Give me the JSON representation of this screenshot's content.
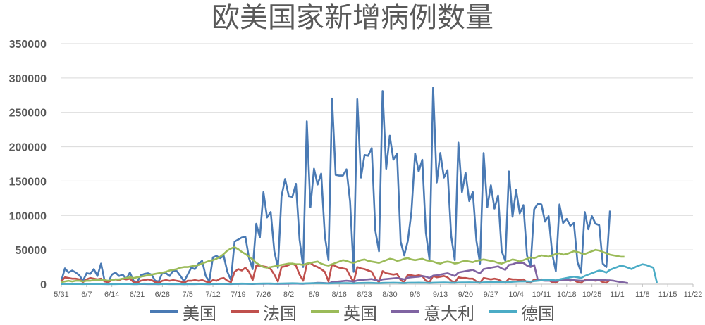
{
  "chart_data": {
    "type": "line",
    "title": "欧美国家新增病例数量",
    "ylim": [
      0,
      350000
    ],
    "y_ticks": [
      "0",
      "50000",
      "100000",
      "150000",
      "200000",
      "250000",
      "300000",
      "350000"
    ],
    "x_ticks": [
      "5/31",
      "6/7",
      "6/14",
      "6/21",
      "6/28",
      "7/5",
      "7/12",
      "7/19",
      "7/26",
      "8/2",
      "8/9",
      "8/16",
      "8/23",
      "8/30",
      "9/6",
      "9/13",
      "9/20",
      "9/27",
      "10/4",
      "10/11",
      "10/18",
      "10/25",
      "11/1",
      "11/8",
      "11/15",
      "11/22"
    ],
    "x_range_days": [
      0,
      175
    ],
    "grid": true,
    "legend_position": "bottom",
    "series": [
      {
        "name": "美国",
        "color": "#4a7ab4",
        "values": [
          5000,
          23000,
          17000,
          20000,
          17000,
          13000,
          5000,
          16000,
          15000,
          22000,
          12000,
          30000,
          5000,
          3000,
          14000,
          17000,
          12000,
          14000,
          8000,
          17000,
          5000,
          3000,
          13000,
          15000,
          16000,
          14000,
          5000,
          4000,
          17000,
          16000,
          12000,
          20000,
          19000,
          12000,
          4000,
          14000,
          24000,
          22000,
          30000,
          34000,
          12000,
          4000,
          39000,
          41000,
          38000,
          41000,
          18000,
          6000,
          62000,
          65000,
          68000,
          69000,
          38000,
          22000,
          88000,
          68000,
          134000,
          97000,
          105000,
          48000,
          24000,
          128000,
          153000,
          128000,
          127000,
          146000,
          65000,
          25000,
          237000,
          112000,
          168000,
          145000,
          161000,
          70000,
          35000,
          270000,
          159000,
          158000,
          158000,
          167000,
          120000,
          18000,
          269000,
          155000,
          188000,
          187000,
          198000,
          78000,
          48000,
          281000,
          168000,
          216000,
          181000,
          190000,
          62000,
          42000,
          63000,
          105000,
          190000,
          164000,
          181000,
          75000,
          36000,
          286000,
          148000,
          191000,
          155000,
          166000,
          70000,
          35000,
          206000,
          134000,
          162000,
          121000,
          134000,
          63000,
          30000,
          191000,
          112000,
          144000,
          110000,
          129000,
          48000,
          34000,
          164000,
          98000,
          137000,
          103000,
          115000,
          42000,
          26000,
          109000,
          117000,
          116000,
          91000,
          99000,
          44000,
          19000,
          116000,
          89000,
          95000,
          85000,
          89000,
          32000,
          17000,
          105000,
          80000,
          99000,
          88000,
          86000,
          30000,
          25000,
          107000
        ]
      },
      {
        "name": "法国",
        "color": "#c0504d",
        "values": [
          4000,
          10000,
          9000,
          8000,
          8000,
          7000,
          3000,
          7000,
          9000,
          8000,
          7000,
          8000,
          4000,
          3000,
          6000,
          7000,
          6000,
          8000,
          7000,
          8000,
          3000,
          2000,
          5000,
          6000,
          7000,
          6000,
          3000,
          2000,
          5000,
          6000,
          5000,
          6000,
          5000,
          4000,
          2000,
          5000,
          5000,
          6000,
          5000,
          6000,
          4000,
          2000,
          6000,
          5000,
          8000,
          9000,
          5000,
          3000,
          18000,
          22000,
          20000,
          24000,
          18000,
          6000,
          27000,
          27000,
          26000,
          25000,
          22000,
          14000,
          4000,
          25000,
          26000,
          28000,
          30000,
          27000,
          14000,
          5000,
          29000,
          31000,
          27000,
          25000,
          22000,
          18000,
          4000,
          29000,
          26000,
          24000,
          23000,
          22000,
          12000,
          3000,
          25000,
          23000,
          22000,
          20000,
          18000,
          8000,
          3000,
          19000,
          16000,
          15000,
          14000,
          15000,
          6000,
          3000,
          14000,
          13000,
          12000,
          13000,
          12000,
          5000,
          3000,
          12000,
          10000,
          11000,
          12000,
          10000,
          5000,
          2000,
          10000,
          9000,
          9000,
          8000,
          8000,
          4000,
          2000,
          9000,
          8000,
          7000,
          8000,
          7000,
          4000,
          2000,
          8000,
          7000,
          7000,
          6000,
          7000,
          3000,
          2000,
          7000,
          6000,
          7000,
          6000,
          6000,
          3000,
          2000,
          6000,
          6000,
          6000,
          5000,
          6000,
          3000,
          2000,
          6000,
          6000,
          6000,
          5000,
          6000,
          3000,
          2000,
          6000
        ]
      },
      {
        "name": "英国",
        "color": "#9bbb59",
        "values": [
          3000,
          4000,
          5000,
          4000,
          5000,
          5000,
          4000,
          5000,
          5000,
          6000,
          6000,
          6000,
          6000,
          5000,
          6000,
          7000,
          7000,
          8000,
          9000,
          10000,
          9000,
          10000,
          11000,
          12000,
          13000,
          14000,
          15000,
          16000,
          17000,
          18000,
          20000,
          21000,
          22000,
          24000,
          25000,
          25000,
          26000,
          27000,
          28000,
          30000,
          32000,
          34000,
          35000,
          37000,
          40000,
          44000,
          49000,
          52000,
          54000,
          51000,
          47000,
          44000,
          40000,
          36000,
          31000,
          28000,
          25000,
          24000,
          25000,
          26000,
          27000,
          28000,
          29000,
          30000,
          30000,
          29000,
          29000,
          28000,
          30000,
          31000,
          32000,
          33000,
          30000,
          28000,
          27000,
          29000,
          31000,
          33000,
          35000,
          34000,
          32000,
          31000,
          33000,
          35000,
          36000,
          34000,
          33000,
          32000,
          31000,
          33000,
          35000,
          37000,
          36000,
          34000,
          35000,
          37000,
          38000,
          36000,
          35000,
          36000,
          37000,
          35000,
          34000,
          33000,
          31000,
          30000,
          32000,
          33000,
          32000,
          30000,
          31000,
          33000,
          34000,
          33000,
          32000,
          34000,
          35000,
          36000,
          35000,
          34000,
          33000,
          31000,
          30000,
          32000,
          34000,
          36000,
          35000,
          33000,
          35000,
          37000,
          39000,
          38000,
          40000,
          42000,
          41000,
          40000,
          42000,
          44000,
          45000,
          43000,
          44000,
          46000,
          48000,
          47000,
          45000,
          44000,
          46000,
          48000,
          50000,
          49000,
          47000,
          45000,
          43000,
          42000,
          41000,
          40000,
          40000
        ]
      },
      {
        "name": "意大利",
        "color": "#8064a2",
        "values": [
          500,
          600,
          500,
          700,
          400,
          500,
          300,
          500,
          400,
          600,
          500,
          600,
          300,
          200,
          400,
          400,
          300,
          500,
          400,
          300,
          200,
          200,
          300,
          300,
          200,
          300,
          200,
          100,
          300,
          300,
          200,
          300,
          200,
          200,
          100,
          200,
          300,
          200,
          300,
          300,
          200,
          100,
          300,
          300,
          400,
          400,
          300,
          200,
          400,
          400,
          500,
          500,
          400,
          300,
          500,
          600,
          500,
          700,
          600,
          500,
          400,
          500,
          600,
          700,
          800,
          900,
          700,
          600,
          1000,
          1200,
          1500,
          2000,
          1800,
          1600,
          1200,
          3000,
          3500,
          4000,
          4500,
          5000,
          4500,
          4000,
          5500,
          6000,
          6500,
          7000,
          7500,
          6000,
          5000,
          7000,
          7500,
          8000,
          8500,
          9000,
          8000,
          7000,
          9500,
          10000,
          10500,
          11000,
          12000,
          11000,
          9000,
          12500,
          13000,
          14000,
          15000,
          16000,
          14000,
          12000,
          17000,
          18000,
          19000,
          20000,
          21000,
          18000,
          16000,
          22000,
          23000,
          24000,
          25000,
          26000,
          23000,
          21000,
          28000,
          29000,
          31000,
          31000,
          31000,
          27000,
          25000,
          28000,
          6000,
          5500,
          5000,
          5200,
          4800,
          4500,
          5500,
          6000,
          6200,
          6000,
          5800,
          5400,
          5000,
          5200,
          5800,
          6000,
          6200,
          6500,
          6300,
          5800,
          5500,
          5000,
          4000,
          3000,
          2500,
          1500
        ]
      },
      {
        "name": "德国",
        "color": "#4bacc6",
        "values": [
          300,
          400,
          400,
          300,
          400,
          300,
          200,
          300,
          400,
          300,
          400,
          300,
          200,
          200,
          300,
          200,
          300,
          300,
          400,
          300,
          200,
          200,
          600,
          800,
          600,
          500,
          400,
          300,
          300,
          400,
          500,
          400,
          300,
          300,
          200,
          300,
          400,
          400,
          500,
          400,
          300,
          300,
          400,
          500,
          500,
          600,
          500,
          400,
          600,
          700,
          800,
          700,
          600,
          500,
          700,
          800,
          900,
          1000,
          900,
          700,
          800,
          1000,
          1100,
          1200,
          1300,
          1200,
          1000,
          900,
          1200,
          1300,
          1400,
          1500,
          1400,
          1200,
          1000,
          1300,
          1500,
          1600,
          1500,
          1400,
          1300,
          1200,
          1600,
          1700,
          1800,
          1900,
          1800,
          1600,
          1400,
          1800,
          1900,
          2000,
          2100,
          2000,
          1800,
          1600,
          2000,
          2100,
          2200,
          2300,
          2200,
          2000,
          1800,
          2200,
          2300,
          2400,
          2500,
          2400,
          2200,
          2000,
          2400,
          2500,
          2600,
          2700,
          2600,
          2400,
          2200,
          2700,
          2800,
          3000,
          3100,
          3000,
          2800,
          2600,
          3200,
          3500,
          3800,
          4000,
          4200,
          4000,
          3800,
          4500,
          5000,
          5500,
          6000,
          6500,
          6000,
          5500,
          7000,
          8000,
          9000,
          10000,
          11000,
          10000,
          9000,
          12000,
          14000,
          16000,
          18000,
          20000,
          19000,
          17000,
          21000,
          23000,
          25000,
          27000,
          26000,
          24000,
          22000,
          25000,
          27000,
          29000,
          28000,
          26000,
          24000,
          2000
        ]
      }
    ]
  }
}
